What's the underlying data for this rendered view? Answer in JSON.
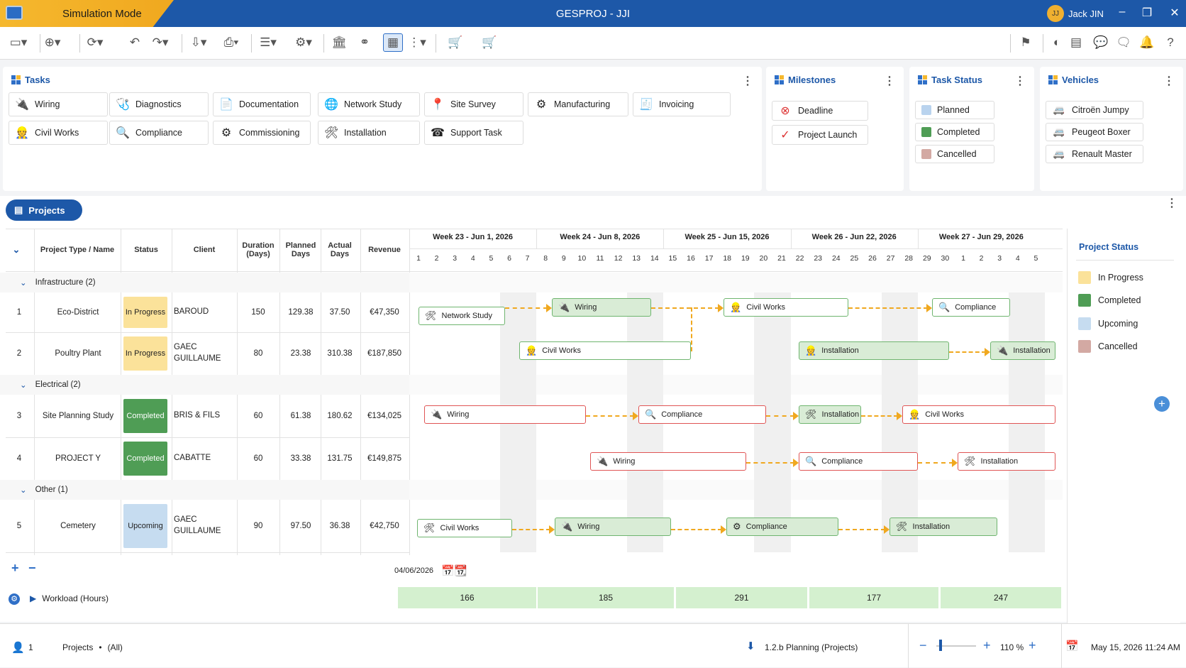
{
  "app": {
    "mode": "Simulation Mode",
    "title": "GESPROJ - JJI",
    "user_initials": "JJ",
    "user_name": "Jack JIN"
  },
  "panels": {
    "tasks": {
      "title": "Tasks",
      "items": [
        {
          "label": "Wiring",
          "icon": "wiring-icon",
          "glyph": "🔌"
        },
        {
          "label": "Diagnostics",
          "icon": "stethoscope-icon",
          "glyph": "🩺"
        },
        {
          "label": "Documentation",
          "icon": "document-icon",
          "glyph": "📄"
        },
        {
          "label": "Network Study",
          "icon": "globe-icon",
          "glyph": "🌐"
        },
        {
          "label": "Site Survey",
          "icon": "survey-icon",
          "glyph": "📍"
        },
        {
          "label": "Manufacturing",
          "icon": "gears-icon",
          "glyph": "⚙"
        },
        {
          "label": "Invoicing",
          "icon": "invoice-icon",
          "glyph": "🧾"
        },
        {
          "label": "Civil Works",
          "icon": "worker-icon",
          "glyph": "👷"
        },
        {
          "label": "Compliance",
          "icon": "compliance-icon",
          "glyph": "🔍"
        },
        {
          "label": "Commissioning",
          "icon": "commissioning-icon",
          "glyph": "⚙"
        },
        {
          "label": "Installation",
          "icon": "tools-icon",
          "glyph": "🛠"
        },
        {
          "label": "Support Task",
          "icon": "phone-icon",
          "glyph": "☎"
        }
      ]
    },
    "milestones": {
      "title": "Milestones",
      "items": [
        {
          "label": "Deadline"
        },
        {
          "label": "Project Launch"
        }
      ]
    },
    "task_status": {
      "title": "Task Status",
      "items": [
        {
          "label": "Planned",
          "color": "#b9d3ee"
        },
        {
          "label": "Completed",
          "color": "#4f9d55"
        },
        {
          "label": "Cancelled",
          "color": "#d3a9a3"
        }
      ]
    },
    "vehicles": {
      "title": "Vehicles",
      "items": [
        {
          "label": "Citroën Jumpy"
        },
        {
          "label": "Peugeot Boxer"
        },
        {
          "label": "Renault Master"
        }
      ]
    }
  },
  "projects": {
    "button": "Projects",
    "columns": {
      "type_name": "Project Type / Name",
      "status": "Status",
      "client": "Client",
      "duration": "Duration (Days)",
      "planned": "Planned Days",
      "actual": "Actual Days",
      "revenue": "Revenue"
    },
    "groups": [
      {
        "label": "Infrastructure (2)"
      },
      {
        "label": "Electrical (2)"
      },
      {
        "label": "Other (1)"
      }
    ],
    "rows": [
      {
        "num": "1",
        "name": "Eco-District",
        "status": "In Progress",
        "client": "BAROUD",
        "duration": "150",
        "planned": "129.38",
        "actual": "37.50",
        "revenue": "€47,350"
      },
      {
        "num": "2",
        "name": "Poultry Plant",
        "status": "In Progress",
        "client": "GAEC GUILLAUME",
        "duration": "80",
        "planned": "23.38",
        "actual": "310.38",
        "revenue": "€187,850"
      },
      {
        "num": "3",
        "name": "Site Planning Study",
        "status": "Completed",
        "client": "BRIS & FILS",
        "duration": "60",
        "planned": "61.38",
        "actual": "180.62",
        "revenue": "€134,025"
      },
      {
        "num": "4",
        "name": "PROJECT Y",
        "status": "Completed",
        "client": "CABATTE",
        "duration": "60",
        "planned": "33.38",
        "actual": "131.75",
        "revenue": "€149,875"
      },
      {
        "num": "5",
        "name": "Cemetery",
        "status": "Upcoming",
        "client": "GAEC GUILLAUME",
        "duration": "90",
        "planned": "97.50",
        "actual": "36.38",
        "revenue": "€42,750"
      }
    ],
    "status_colors": {
      "In Progress": "#fbe29a",
      "Completed": "#4f9d55",
      "Upcoming": "#c6dcf0"
    }
  },
  "gantt": {
    "weeks": [
      "Week 23 - Jun 1, 2026",
      "Week 24 - Jun 8, 2026",
      "Week 25 - Jun 15, 2026",
      "Week 26 - Jun 22, 2026",
      "Week 27 - Jun 29, 2026"
    ],
    "days": [
      "1",
      "2",
      "3",
      "4",
      "5",
      "6",
      "7",
      "8",
      "9",
      "10",
      "11",
      "12",
      "13",
      "14",
      "15",
      "16",
      "17",
      "18",
      "19",
      "20",
      "21",
      "22",
      "23",
      "24",
      "25",
      "26",
      "27",
      "28",
      "29",
      "30",
      "1",
      "2",
      "3",
      "4",
      "5"
    ],
    "bars": {
      "r1": [
        "Network Study",
        "Wiring",
        "Civil Works",
        "Compliance"
      ],
      "r2": [
        "Civil Works",
        "Installation",
        "Installation"
      ],
      "r3": [
        "Wiring",
        "Compliance",
        "Installation",
        "Civil Works"
      ],
      "r4": [
        "Wiring",
        "Compliance",
        "Installation"
      ],
      "r5": [
        "Civil Works",
        "Wiring",
        "Compliance",
        "Installation"
      ]
    },
    "date": "04/06/2026",
    "workload_label": "Workload (Hours)",
    "workload": [
      "166",
      "185",
      "291",
      "177",
      "247"
    ]
  },
  "project_status": {
    "title": "Project Status",
    "items": [
      {
        "label": "In Progress",
        "color": "#fbe29a"
      },
      {
        "label": "Completed",
        "color": "#4f9d55"
      },
      {
        "label": "Upcoming",
        "color": "#c6dcf0"
      },
      {
        "label": "Cancelled",
        "color": "#d3a9a3"
      }
    ]
  },
  "statusbar": {
    "user_count": "1",
    "view": "Projects",
    "separator": "•",
    "filter": "(All)",
    "report": "1.2.b Planning (Projects)",
    "zoom": "110 %",
    "datetime": "May 15, 2026 11:24 AM"
  }
}
